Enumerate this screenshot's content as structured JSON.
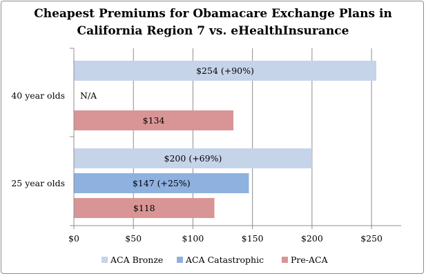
{
  "chart_data": {
    "type": "bar",
    "orientation": "horizontal",
    "title_line1": "Cheapest Premiums for Obamacare Exchange Plans in",
    "title_line2": "California Region 7 vs. eHealthInsurance",
    "categories": [
      "40 year olds",
      "25 year olds"
    ],
    "series": [
      {
        "name": "ACA Bronze",
        "color": "#c6d4ea",
        "values": [
          254,
          200
        ],
        "labels": [
          "$254 (+90%)",
          "$200 (+69%)"
        ]
      },
      {
        "name": "ACA Catastrophic",
        "color": "#8eb1df",
        "values": [
          null,
          147
        ],
        "labels": [
          "N/A",
          "$147 (+25%)"
        ]
      },
      {
        "name": "Pre-ACA",
        "color": "#d99595",
        "values": [
          134,
          118
        ],
        "labels": [
          "$134",
          "$118"
        ]
      }
    ],
    "xlim": [
      0,
      275
    ],
    "xticks": [
      0,
      50,
      100,
      150,
      200,
      250
    ],
    "xtick_labels": [
      "$0",
      "$50",
      "$100",
      "$150",
      "$200",
      "$250"
    ],
    "grid": true,
    "legend_position": "bottom"
  }
}
